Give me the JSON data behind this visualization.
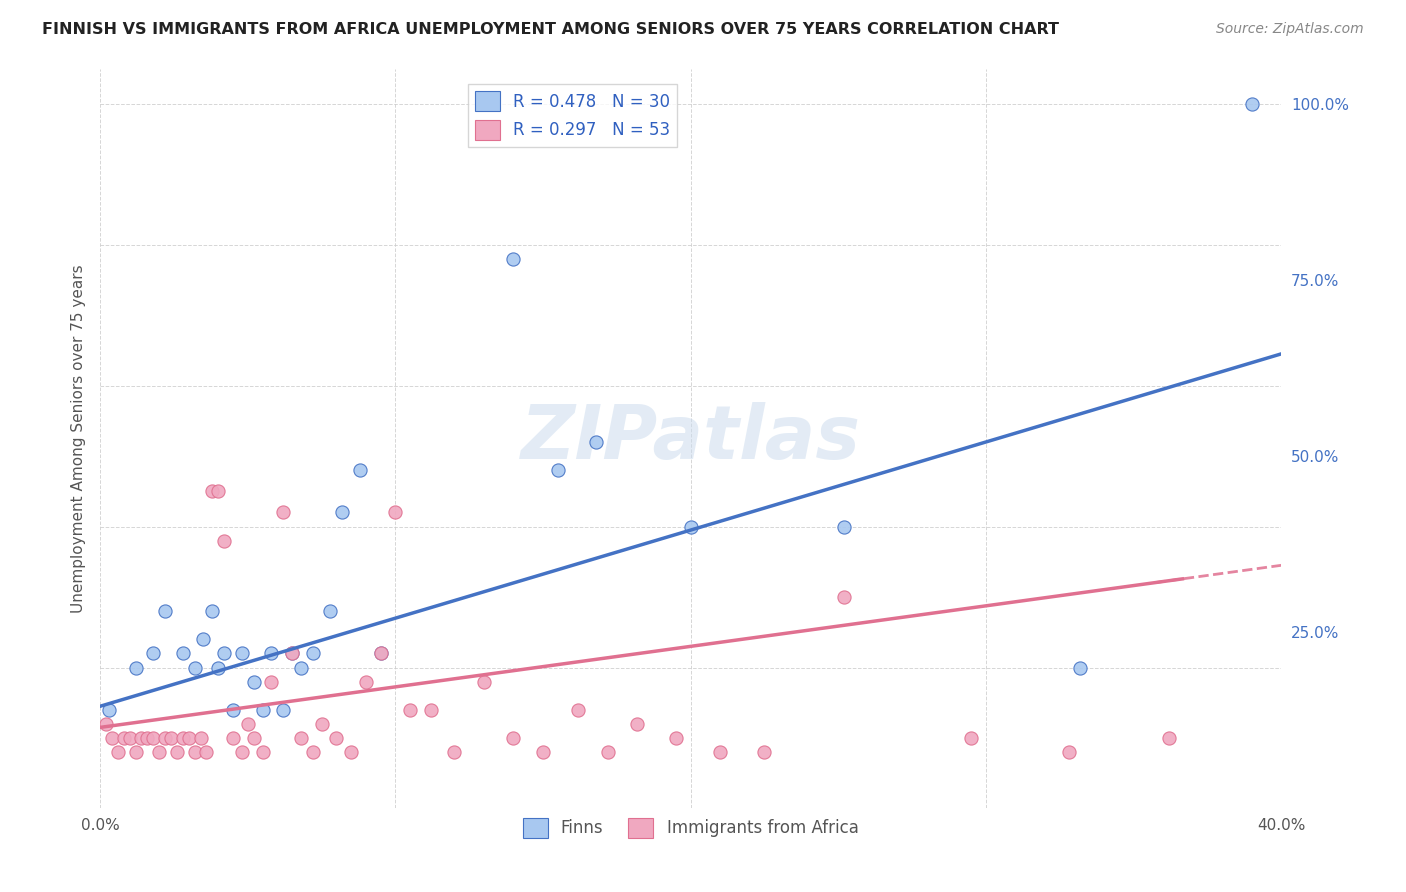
{
  "title": "FINNISH VS IMMIGRANTS FROM AFRICA UNEMPLOYMENT AMONG SENIORS OVER 75 YEARS CORRELATION CHART",
  "source": "Source: ZipAtlas.com",
  "ylabel": "Unemployment Among Seniors over 75 years",
  "xmin": 0.0,
  "xmax": 0.4,
  "ymin": 0.0,
  "ymax": 1.05,
  "x_ticks": [
    0.0,
    0.1,
    0.2,
    0.3,
    0.4
  ],
  "x_tick_labels": [
    "0.0%",
    "",
    "",
    "",
    "40.0%"
  ],
  "y_ticks_right": [
    0.0,
    0.25,
    0.5,
    0.75,
    1.0
  ],
  "y_tick_labels_right": [
    "",
    "25.0%",
    "50.0%",
    "75.0%",
    "100.0%"
  ],
  "legend_label1": "R = 0.478   N = 30",
  "legend_label2": "R = 0.297   N = 53",
  "legend_color1": "#a8c8f0",
  "legend_color2": "#f0a8c0",
  "watermark": "ZIPatlas",
  "finns_color": "#a8c8f0",
  "immigrants_color": "#f0a8c0",
  "trend_finns_color": "#4472c4",
  "trend_immigrants_color": "#e07090",
  "finns_trend_slope": 1.25,
  "finns_trend_intercept": 0.145,
  "immigrants_trend_slope": 0.575,
  "immigrants_trend_intercept": 0.115,
  "finns_x": [
    0.003,
    0.012,
    0.018,
    0.022,
    0.028,
    0.032,
    0.035,
    0.038,
    0.04,
    0.042,
    0.045,
    0.048,
    0.052,
    0.055,
    0.058,
    0.062,
    0.065,
    0.068,
    0.072,
    0.078,
    0.082,
    0.088,
    0.095,
    0.14,
    0.155,
    0.168,
    0.2,
    0.252,
    0.332,
    0.39
  ],
  "finns_y": [
    0.14,
    0.2,
    0.22,
    0.28,
    0.22,
    0.2,
    0.24,
    0.28,
    0.2,
    0.22,
    0.14,
    0.22,
    0.18,
    0.14,
    0.22,
    0.14,
    0.22,
    0.2,
    0.22,
    0.28,
    0.42,
    0.48,
    0.22,
    0.78,
    0.48,
    0.52,
    0.4,
    0.4,
    0.2,
    1.0
  ],
  "immigrants_x": [
    0.002,
    0.004,
    0.006,
    0.008,
    0.01,
    0.012,
    0.014,
    0.016,
    0.018,
    0.02,
    0.022,
    0.024,
    0.026,
    0.028,
    0.03,
    0.032,
    0.034,
    0.036,
    0.038,
    0.04,
    0.042,
    0.045,
    0.048,
    0.05,
    0.052,
    0.055,
    0.058,
    0.062,
    0.065,
    0.068,
    0.072,
    0.075,
    0.08,
    0.085,
    0.09,
    0.095,
    0.1,
    0.105,
    0.112,
    0.12,
    0.13,
    0.14,
    0.15,
    0.162,
    0.172,
    0.182,
    0.195,
    0.21,
    0.225,
    0.252,
    0.295,
    0.328,
    0.362
  ],
  "immigrants_y": [
    0.12,
    0.1,
    0.08,
    0.1,
    0.1,
    0.08,
    0.1,
    0.1,
    0.1,
    0.08,
    0.1,
    0.1,
    0.08,
    0.1,
    0.1,
    0.08,
    0.1,
    0.08,
    0.45,
    0.45,
    0.38,
    0.1,
    0.08,
    0.12,
    0.1,
    0.08,
    0.18,
    0.42,
    0.22,
    0.1,
    0.08,
    0.12,
    0.1,
    0.08,
    0.18,
    0.22,
    0.42,
    0.14,
    0.14,
    0.08,
    0.18,
    0.1,
    0.08,
    0.14,
    0.08,
    0.12,
    0.1,
    0.08,
    0.08,
    0.3,
    0.1,
    0.08,
    0.1
  ]
}
